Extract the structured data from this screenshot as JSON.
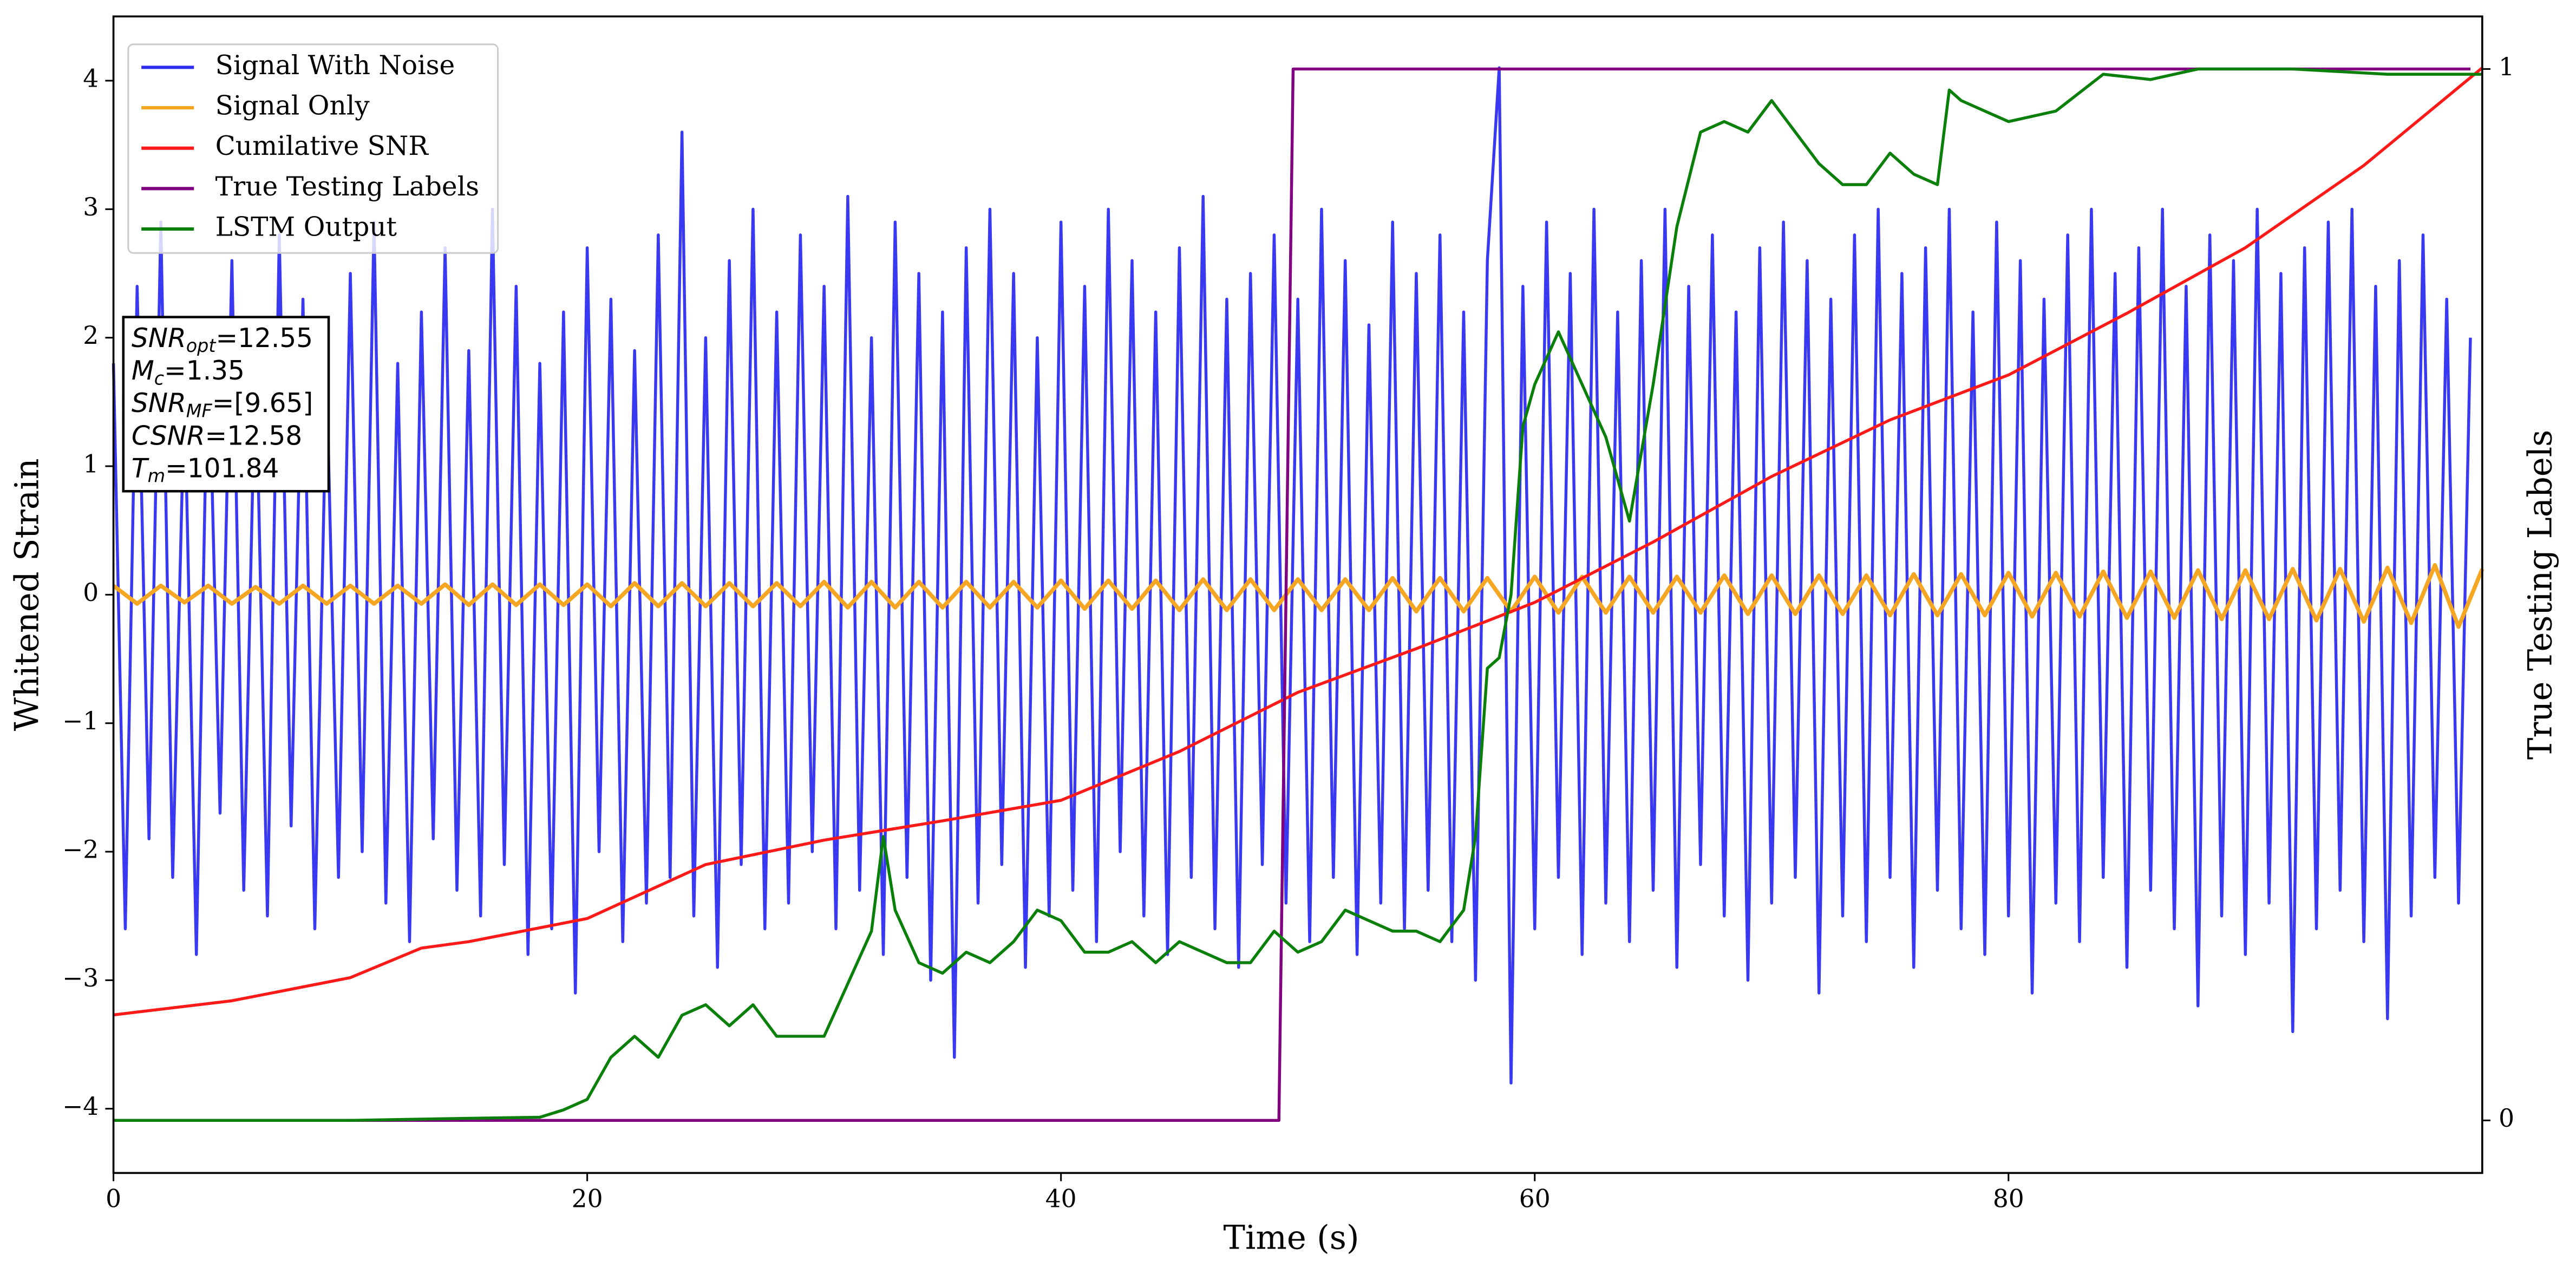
{
  "chart_data": {
    "type": "line",
    "xlabel": "Time (s)",
    "ylabel": "Whitened Strain",
    "y2label": "True Testing Labels",
    "xlim": [
      0,
      100
    ],
    "ylim": [
      -4.5,
      4.5
    ],
    "y2lim": [
      -0.05,
      1.05
    ],
    "xticks": [
      0,
      20,
      40,
      60,
      80
    ],
    "yticks": [
      {
        "value": -4,
        "label": "−4"
      },
      {
        "value": -3,
        "label": "−3"
      },
      {
        "value": -2,
        "label": "−2"
      },
      {
        "value": -1,
        "label": "−1"
      },
      0,
      1,
      2,
      3,
      4
    ],
    "y2ticks": [
      0,
      1
    ],
    "legend": "upper left",
    "series": [
      {
        "name": "Signal With Noise",
        "color": "#2e2ef0",
        "x": [
          0,
          0.5,
          1,
          1.5,
          2,
          2.5,
          3,
          3.5,
          4,
          4.5,
          5,
          5.5,
          6,
          6.5,
          7,
          7.5,
          8,
          8.5,
          9,
          9.5,
          10,
          10.5,
          11,
          11.5,
          12,
          12.5,
          13,
          13.5,
          14,
          14.5,
          15,
          15.5,
          16,
          16.5,
          17,
          17.5,
          18,
          18.5,
          19,
          19.5,
          20,
          20.5,
          21,
          21.5,
          22,
          22.5,
          23,
          23.5,
          24,
          24.5,
          25,
          25.5,
          26,
          26.5,
          27,
          27.5,
          28,
          28.5,
          29,
          29.5,
          30,
          30.5,
          31,
          31.5,
          32,
          32.5,
          33,
          33.5,
          34,
          34.5,
          35,
          35.5,
          36,
          36.5,
          37,
          37.5,
          38,
          38.5,
          39,
          39.5,
          40,
          40.5,
          41,
          41.5,
          42,
          42.5,
          43,
          43.5,
          44,
          44.5,
          45,
          45.5,
          46,
          46.5,
          47,
          47.5,
          48,
          48.5,
          49,
          49.5,
          50,
          50.5,
          51,
          51.5,
          52,
          52.5,
          53,
          53.5,
          54,
          54.5,
          55,
          55.5,
          56,
          56.5,
          57,
          57.5,
          58,
          58.5,
          59,
          59.5,
          60,
          60.5,
          61,
          61.5,
          62,
          62.5,
          63,
          63.5,
          64,
          64.5,
          65,
          65.5,
          66,
          66.5,
          67,
          67.5,
          68,
          68.5,
          69,
          69.5,
          70,
          70.5,
          71,
          71.5,
          72,
          72.5,
          73,
          73.5,
          74,
          74.5,
          75,
          75.5,
          76,
          76.5,
          77,
          77.5,
          78,
          78.5,
          79,
          79.5,
          80,
          80.5,
          81,
          81.5,
          82,
          82.5,
          83,
          83.5,
          84,
          84.5,
          85,
          85.5,
          86,
          86.5,
          87,
          87.5,
          88,
          88.5,
          89,
          89.5,
          90,
          90.5,
          91,
          91.5,
          92,
          92.5,
          93,
          93.5,
          94,
          94.5,
          95,
          95.5,
          96,
          96.5,
          97,
          97.5,
          98,
          98.5,
          99,
          99.5
        ],
        "values": [
          1.8,
          -2.6,
          2.4,
          -1.9,
          2.9,
          -2.2,
          1.6,
          -2.8,
          2.1,
          -1.7,
          2.6,
          -2.3,
          1.9,
          -2.5,
          2.8,
          -1.8,
          2.3,
          -2.6,
          1.7,
          -2.2,
          2.5,
          -2.0,
          2.9,
          -2.4,
          1.8,
          -2.7,
          2.2,
          -1.9,
          2.7,
          -2.3,
          1.9,
          -2.5,
          3.0,
          -2.1,
          2.4,
          -2.8,
          1.8,
          -2.6,
          2.2,
          -3.1,
          2.7,
          -2.0,
          2.3,
          -2.7,
          1.9,
          -2.4,
          2.8,
          -2.2,
          3.6,
          -2.5,
          2.0,
          -2.9,
          2.6,
          -2.1,
          3.0,
          -2.6,
          2.2,
          -2.4,
          2.8,
          -2.0,
          2.4,
          -2.6,
          3.1,
          -2.3,
          2.0,
          -2.8,
          2.9,
          -2.2,
          2.5,
          -3.0,
          2.2,
          -3.6,
          2.7,
          -2.4,
          3.0,
          -2.1,
          2.5,
          -2.9,
          2.0,
          -2.5,
          2.9,
          -2.3,
          2.4,
          -2.7,
          3.0,
          -2.0,
          2.6,
          -2.5,
          2.2,
          -2.8,
          2.7,
          -2.2,
          3.1,
          -2.6,
          2.3,
          -2.9,
          2.5,
          -2.1,
          2.8,
          -2.4,
          2.3,
          -2.7,
          3.0,
          -2.2,
          2.6,
          -2.8,
          2.1,
          -2.4,
          2.9,
          -2.6,
          2.5,
          -2.3,
          2.8,
          -2.7,
          2.2,
          -3.0,
          2.6,
          4.1,
          -3.8,
          2.4,
          -2.6,
          2.9,
          -2.2,
          2.5,
          -2.8,
          3.0,
          -2.4,
          2.2,
          -2.7,
          2.6,
          -2.3,
          3.0,
          -2.9,
          2.4,
          -2.1,
          2.8,
          -2.5,
          2.2,
          -3.0,
          2.7,
          -2.4,
          2.9,
          -2.2,
          2.6,
          -3.1,
          2.3,
          -2.5,
          2.8,
          -2.7,
          3.0,
          -2.2,
          2.5,
          -2.9,
          2.7,
          -2.3,
          3.0,
          -2.6,
          2.2,
          -2.8,
          2.9,
          -2.5,
          2.6,
          -3.1,
          2.3,
          -2.4,
          2.8,
          -2.7,
          3.0,
          -2.2,
          2.5,
          -2.9,
          2.7,
          -2.3,
          3.0,
          -2.6,
          2.4,
          -3.2,
          2.8,
          -2.5,
          2.6,
          -2.8,
          3.0,
          -2.4,
          2.5,
          -3.4,
          2.7,
          -2.6,
          2.9,
          -2.3,
          3.0,
          -2.7,
          2.4,
          -3.3,
          2.6,
          -2.5,
          2.8,
          -2.2,
          2.3,
          -2.4,
          2.0
        ]
      },
      {
        "name": "Signal Only",
        "color": "#f5a623",
        "x": [
          0,
          1,
          2,
          3,
          4,
          5,
          6,
          7,
          8,
          9,
          10,
          11,
          12,
          13,
          14,
          15,
          16,
          17,
          18,
          19,
          20,
          21,
          22,
          23,
          24,
          25,
          26,
          27,
          28,
          29,
          30,
          31,
          32,
          33,
          34,
          35,
          36,
          37,
          38,
          39,
          40,
          41,
          42,
          43,
          44,
          45,
          46,
          47,
          48,
          49,
          50,
          51,
          52,
          53,
          54,
          55,
          56,
          57,
          58,
          59,
          60,
          61,
          62,
          63,
          64,
          65,
          66,
          67,
          68,
          69,
          70,
          71,
          72,
          73,
          74,
          75,
          76,
          77,
          78,
          79,
          80,
          81,
          82,
          83,
          84,
          85,
          86,
          87,
          88,
          89,
          90,
          91,
          92,
          93,
          94,
          95,
          96,
          97,
          98,
          99,
          100
        ],
        "values": [
          0.07,
          -0.07,
          0.07,
          -0.06,
          0.07,
          -0.07,
          0.06,
          -0.07,
          0.07,
          -0.07,
          0.07,
          -0.07,
          0.07,
          -0.07,
          0.08,
          -0.08,
          0.08,
          -0.08,
          0.08,
          -0.08,
          0.08,
          -0.09,
          0.09,
          -0.09,
          0.09,
          -0.09,
          0.09,
          -0.09,
          0.09,
          -0.09,
          0.1,
          -0.1,
          0.1,
          -0.1,
          0.1,
          -0.1,
          0.1,
          -0.1,
          0.1,
          -0.1,
          0.11,
          -0.11,
          0.11,
          -0.11,
          0.11,
          -0.12,
          0.12,
          -0.12,
          0.12,
          -0.12,
          0.12,
          -0.12,
          0.12,
          -0.12,
          0.13,
          -0.13,
          0.13,
          -0.13,
          0.13,
          -0.13,
          0.14,
          -0.14,
          0.14,
          -0.14,
          0.14,
          -0.14,
          0.14,
          -0.14,
          0.15,
          -0.15,
          0.15,
          -0.15,
          0.15,
          -0.15,
          0.15,
          -0.16,
          0.16,
          -0.16,
          0.16,
          -0.16,
          0.17,
          -0.17,
          0.17,
          -0.17,
          0.18,
          -0.18,
          0.18,
          -0.18,
          0.19,
          -0.19,
          0.19,
          -0.19,
          0.2,
          -0.2,
          0.2,
          -0.21,
          0.21,
          -0.22,
          0.23,
          -0.25,
          0.2
        ]
      },
      {
        "name": "Cumilative SNR",
        "color": "#ff1a1a",
        "x": [
          0,
          5,
          10,
          13,
          15,
          20,
          25,
          30,
          35,
          40,
          45,
          50,
          55,
          60,
          65,
          70,
          75,
          80,
          85,
          90,
          95,
          100
        ],
        "values": [
          -3.27,
          -3.16,
          -2.98,
          -2.75,
          -2.7,
          -2.52,
          -2.1,
          -1.91,
          -1.76,
          -1.6,
          -1.22,
          -0.76,
          -0.42,
          -0.06,
          0.41,
          0.92,
          1.36,
          1.71,
          2.19,
          2.7,
          3.34,
          4.1
        ]
      },
      {
        "name": "True Testing Labels",
        "color": "#800080",
        "axis": "y2",
        "x": [
          0,
          49.2,
          49.8,
          99.5
        ],
        "values": [
          0,
          0,
          1,
          1
        ]
      },
      {
        "name": "LSTM Output",
        "color": "#0a800a",
        "axis": "y2",
        "x": [
          0,
          10,
          15,
          18,
          19,
          20,
          21,
          22,
          23,
          24,
          25,
          26,
          27,
          28,
          29,
          30,
          31,
          32,
          32.5,
          33,
          34,
          35,
          36,
          37,
          38,
          39,
          40,
          41,
          42,
          43,
          44,
          45,
          46,
          47,
          48,
          49,
          50,
          51,
          52,
          53,
          54,
          55,
          56,
          57,
          57.5,
          58,
          58.5,
          59,
          59.5,
          60,
          61,
          62,
          63,
          64,
          65,
          66,
          67,
          68,
          69,
          70,
          71,
          72,
          73,
          74,
          75,
          76,
          77,
          77.5,
          78,
          80,
          82,
          84,
          86,
          88,
          92,
          96,
          100
        ],
        "values": [
          0,
          0,
          0.002,
          0.003,
          0.01,
          0.02,
          0.06,
          0.08,
          0.06,
          0.1,
          0.11,
          0.09,
          0.11,
          0.08,
          0.08,
          0.08,
          0.13,
          0.18,
          0.27,
          0.2,
          0.15,
          0.14,
          0.16,
          0.15,
          0.17,
          0.2,
          0.19,
          0.16,
          0.16,
          0.17,
          0.15,
          0.17,
          0.16,
          0.15,
          0.15,
          0.18,
          0.16,
          0.17,
          0.2,
          0.19,
          0.18,
          0.18,
          0.17,
          0.2,
          0.27,
          0.43,
          0.44,
          0.5,
          0.66,
          0.7,
          0.75,
          0.7,
          0.65,
          0.57,
          0.7,
          0.85,
          0.94,
          0.95,
          0.94,
          0.97,
          0.94,
          0.91,
          0.89,
          0.89,
          0.92,
          0.9,
          0.89,
          0.98,
          0.97,
          0.95,
          0.96,
          0.995,
          0.99,
          1.0,
          1.0,
          0.995,
          0.995
        ]
      }
    ],
    "annotations": [
      {
        "name": "SNR",
        "sub": "opt",
        "text": "=12.55"
      },
      {
        "name": "M",
        "sub": "c",
        "text": "=1.35"
      },
      {
        "name": "SNR",
        "sub": "MF",
        "text": "=[9.65]"
      },
      {
        "name": "CSNR",
        "text": "=12.58"
      },
      {
        "name": "T",
        "sub": "m",
        "text": "=101.84"
      }
    ]
  }
}
